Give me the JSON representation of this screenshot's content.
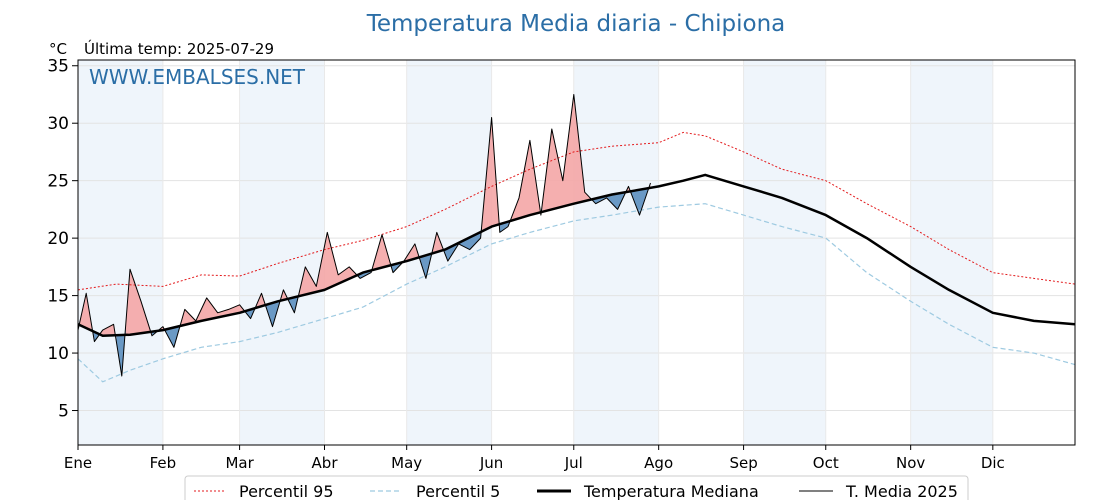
{
  "title": "Temperatura Media diaria - Chipiona",
  "unit": "°C",
  "last_temp_label": "Última temp: 2025-07-29",
  "watermark": "WWW.EMBALSES.NET",
  "colors": {
    "title": "#2b6ea6",
    "p95": "#e31a1c",
    "p5": "#9ecae1",
    "median": "#000000",
    "current": "#000000",
    "above_fill": "#f4a6a6",
    "below_fill": "#5b8fbf",
    "band": "#e8f1f9"
  },
  "chart_data": {
    "type": "line",
    "xlabel": "",
    "ylabel": "°C",
    "ylim": [
      2,
      35.5
    ],
    "xlim": [
      1,
      365
    ],
    "yticks": [
      5,
      10,
      15,
      20,
      25,
      30,
      35
    ],
    "months": [
      "Ene",
      "Feb",
      "Mar",
      "Abr",
      "May",
      "Jun",
      "Jul",
      "Ago",
      "Sep",
      "Oct",
      "Nov",
      "Dic"
    ],
    "month_start_days": [
      1,
      32,
      60,
      91,
      121,
      152,
      182,
      213,
      244,
      274,
      305,
      335
    ],
    "grid": true,
    "legend_position": "bottom-center",
    "series": [
      {
        "name": "Percentil 95",
        "style": "dotted",
        "x": [
          1,
          15,
          32,
          46,
          60,
          74,
          91,
          105,
          121,
          135,
          152,
          166,
          182,
          196,
          213,
          222,
          230,
          244,
          258,
          274,
          289,
          305,
          319,
          335,
          350,
          365
        ],
        "y": [
          15.5,
          16.0,
          15.8,
          16.8,
          16.7,
          17.8,
          19.0,
          19.8,
          21.0,
          22.5,
          24.5,
          26.0,
          27.5,
          28.0,
          28.3,
          29.2,
          28.9,
          27.5,
          26.0,
          25.0,
          23.0,
          21.0,
          19.0,
          17.0,
          16.5,
          16.0
        ]
      },
      {
        "name": "Percentil 5",
        "style": "dashed",
        "x": [
          1,
          10,
          20,
          32,
          46,
          60,
          74,
          91,
          105,
          121,
          135,
          152,
          166,
          182,
          196,
          213,
          230,
          244,
          258,
          274,
          289,
          305,
          319,
          335,
          350,
          365
        ],
        "y": [
          9.5,
          7.5,
          8.5,
          9.5,
          10.5,
          11.0,
          11.8,
          13.0,
          14.0,
          16.0,
          17.5,
          19.5,
          20.5,
          21.5,
          22.0,
          22.7,
          23.0,
          22.0,
          21.0,
          20.0,
          17.0,
          14.5,
          12.5,
          10.5,
          10.0,
          9.0
        ]
      },
      {
        "name": "Temperatura Mediana",
        "style": "thick",
        "x": [
          1,
          10,
          20,
          32,
          46,
          60,
          74,
          91,
          105,
          121,
          135,
          152,
          166,
          182,
          196,
          213,
          222,
          230,
          244,
          258,
          274,
          289,
          305,
          319,
          335,
          350,
          365
        ],
        "y": [
          12.5,
          11.5,
          11.6,
          12.0,
          12.8,
          13.5,
          14.5,
          15.5,
          17.0,
          18.0,
          19.0,
          21.0,
          22.0,
          23.0,
          23.8,
          24.5,
          25.0,
          25.5,
          24.5,
          23.5,
          22.0,
          20.0,
          17.5,
          15.5,
          13.5,
          12.8,
          12.5
        ]
      },
      {
        "name": "T. Media 2025",
        "style": "thin",
        "x": [
          1,
          4,
          7,
          10,
          14,
          17,
          20,
          24,
          28,
          32,
          36,
          40,
          44,
          48,
          52,
          56,
          60,
          64,
          68,
          72,
          76,
          80,
          84,
          88,
          92,
          96,
          100,
          104,
          108,
          112,
          116,
          120,
          124,
          128,
          132,
          136,
          140,
          144,
          148,
          152,
          155,
          158,
          162,
          166,
          170,
          174,
          178,
          182,
          186,
          190,
          194,
          198,
          202,
          206,
          210
        ],
        "y": [
          12.0,
          15.2,
          11.0,
          12.0,
          12.5,
          8.0,
          17.3,
          14.5,
          11.5,
          12.3,
          10.5,
          13.8,
          12.8,
          14.8,
          13.5,
          13.8,
          14.2,
          13.0,
          15.2,
          12.3,
          15.5,
          13.5,
          17.5,
          15.8,
          20.5,
          16.8,
          17.5,
          16.5,
          17.0,
          20.3,
          17.0,
          18.0,
          19.5,
          16.5,
          20.5,
          18.0,
          19.5,
          19.0,
          20.0,
          30.5,
          20.5,
          21.0,
          23.5,
          28.5,
          22.0,
          29.5,
          25.0,
          32.5,
          24.0,
          23.0,
          23.5,
          22.5,
          24.5,
          22.0,
          24.8
        ]
      }
    ]
  },
  "legend": {
    "p95": "Percentil 95",
    "p5": "Percentil 5",
    "median": "Temperatura Mediana",
    "current": "T. Media 2025"
  }
}
